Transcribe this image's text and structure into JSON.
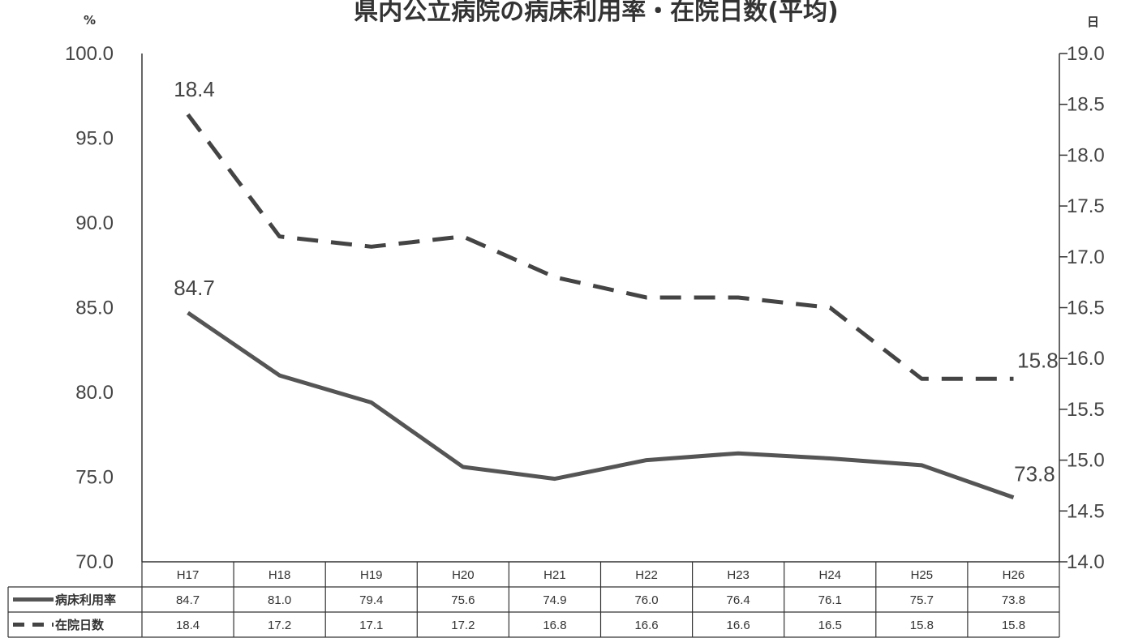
{
  "chart_data": {
    "type": "line",
    "title": "県内公立病院の病床利用率・在院日数(平均)",
    "left_unit": "%",
    "right_unit": "日",
    "categories": [
      "H17",
      "H18",
      "H19",
      "H20",
      "H21",
      "H22",
      "H23",
      "H24",
      "H25",
      "H26"
    ],
    "series": [
      {
        "name": "病床利用率",
        "axis": "left",
        "style": "solid",
        "values": [
          84.7,
          81.0,
          79.4,
          75.6,
          74.9,
          76.0,
          76.4,
          76.1,
          75.7,
          73.8
        ],
        "color": "#555555"
      },
      {
        "name": "在院日数",
        "axis": "right",
        "style": "dashed",
        "values": [
          18.4,
          17.2,
          17.1,
          17.2,
          16.8,
          16.6,
          16.6,
          16.5,
          15.8,
          15.8
        ],
        "color": "#444444"
      }
    ],
    "left_axis": {
      "ylim": [
        70,
        100
      ],
      "ticks": [
        "70.0",
        "75.0",
        "80.0",
        "85.0",
        "90.0",
        "95.0",
        "100.0"
      ]
    },
    "right_axis": {
      "ylim": [
        14,
        19
      ],
      "ticks": [
        "14.0",
        "14.5",
        "15.0",
        "15.5",
        "16.0",
        "16.5",
        "17.0",
        "17.5",
        "18.0",
        "18.5",
        "19.0"
      ]
    },
    "annotations": [
      {
        "series": 0,
        "index": 0,
        "text": "84.7"
      },
      {
        "series": 0,
        "index": 9,
        "text": "73.8"
      },
      {
        "series": 1,
        "index": 0,
        "text": "18.4"
      },
      {
        "series": 1,
        "index": 9,
        "text": "15.8"
      }
    ],
    "table": {
      "rows": [
        {
          "label": "病床利用率",
          "cells": [
            "84.7",
            "81.0",
            "79.4",
            "75.6",
            "74.9",
            "76.0",
            "76.4",
            "76.1",
            "75.7",
            "73.8"
          ]
        },
        {
          "label": "在院日数",
          "cells": [
            "18.4",
            "17.2",
            "17.1",
            "17.2",
            "16.8",
            "16.6",
            "16.6",
            "16.5",
            "15.8",
            "15.8"
          ]
        }
      ]
    },
    "grid": false,
    "legend": "data-table"
  }
}
